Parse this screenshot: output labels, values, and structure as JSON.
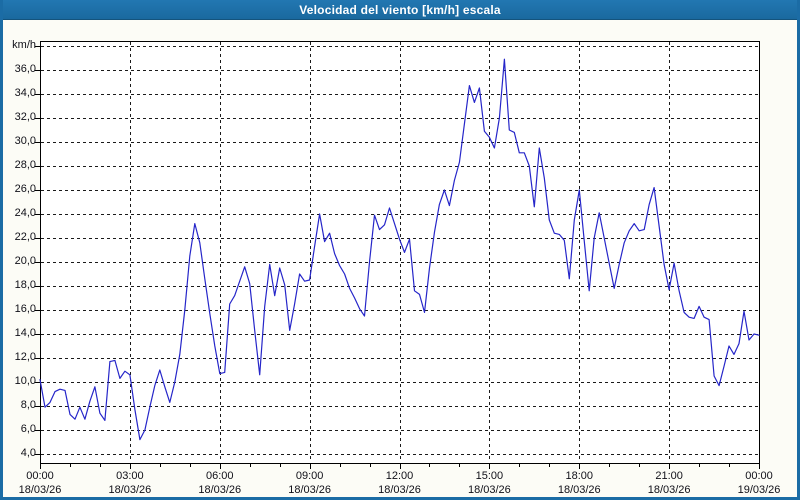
{
  "window": {
    "title": "Velocidad del viento [km/h] escala"
  },
  "colors": {
    "titlebar_bg": "#1b6ca5",
    "window_border": "#1b6ca5",
    "title_text": "#ffffff",
    "line_color": "#2626c9",
    "grid_color": "#1a1a1a",
    "plot_bg": "#ffffff",
    "outer_bg": "#fcfcf6",
    "label_text": "#101018"
  },
  "chart_data": {
    "type": "line",
    "title": "Velocidad del viento [km/h] escala",
    "series_name": "Velocidad del viento",
    "ylabel": "km/h",
    "ylim": [
      4,
      38
    ],
    "y_grid_step": 2,
    "grid": "dashed",
    "legend": "none",
    "y_axis": {
      "unit_label": "km/h",
      "tick_labels": [
        "36,0",
        "34,0",
        "32,0",
        "30,0",
        "28,0",
        "26,0",
        "24,0",
        "22,0",
        "20,0",
        "18,0",
        "16,0",
        "14,0",
        "12,0",
        "10,0",
        "8,0",
        "6,0",
        "4,0"
      ],
      "tick_values": [
        36,
        34,
        32,
        30,
        28,
        26,
        24,
        22,
        20,
        18,
        16,
        14,
        12,
        10,
        8,
        6,
        4
      ]
    },
    "x_axis": {
      "ticks": [
        {
          "time": "00:00",
          "date": "18/03/26"
        },
        {
          "time": "03:00",
          "date": "18/03/26"
        },
        {
          "time": "06:00",
          "date": "18/03/26"
        },
        {
          "time": "09:00",
          "date": "18/03/26"
        },
        {
          "time": "12:00",
          "date": "18/03/26"
        },
        {
          "time": "15:00",
          "date": "18/03/26"
        },
        {
          "time": "18:00",
          "date": "18/03/26"
        },
        {
          "time": "21:00",
          "date": "18/03/26"
        },
        {
          "time": "00:00",
          "date": "19/03/26"
        }
      ],
      "minor_tick_hours": 1,
      "major_tick_hours": 3,
      "span_hours": 24
    },
    "x_start": "00:00",
    "x_step_minutes": 10,
    "values": [
      10.2,
      7.9,
      8.3,
      9.2,
      9.4,
      9.3,
      7.3,
      6.9,
      7.9,
      6.9,
      8.4,
      9.6,
      7.4,
      6.8,
      11.7,
      11.8,
      10.3,
      10.9,
      10.6,
      7.7,
      5.2,
      6.0,
      7.9,
      9.7,
      11.0,
      9.6,
      8.3,
      10.0,
      12.3,
      16.0,
      20.5,
      23.2,
      21.6,
      18.6,
      15.7,
      13.0,
      10.7,
      10.8,
      16.5,
      17.2,
      18.4,
      19.6,
      18.2,
      14.3,
      10.6,
      16.3,
      19.8,
      17.2,
      19.5,
      18.1,
      14.3,
      16.5,
      19.0,
      18.4,
      18.5,
      21.3,
      24.0,
      21.7,
      22.4,
      20.7,
      19.7,
      19.0,
      17.8,
      17.0,
      16.1,
      15.5,
      20.0,
      23.9,
      22.7,
      23.1,
      24.5,
      23.2,
      21.9,
      20.8,
      21.9,
      17.6,
      17.3,
      15.8,
      19.5,
      22.5,
      24.8,
      26.0,
      24.7,
      26.8,
      28.3,
      31.5,
      34.7,
      33.3,
      34.5,
      30.9,
      30.4,
      29.5,
      32.0,
      36.9,
      31.0,
      30.8,
      29.1,
      29.1,
      28.0,
      24.6,
      29.5,
      27.0,
      23.5,
      22.4,
      22.3,
      21.8,
      18.6,
      23.5,
      26.0,
      21.8,
      17.6,
      22.0,
      24.1,
      22.0,
      19.9,
      17.8,
      19.8,
      21.6,
      22.6,
      23.2,
      22.6,
      22.7,
      24.8,
      26.2,
      23.0,
      19.8,
      17.7,
      19.9,
      17.6,
      15.8,
      15.4,
      15.3,
      16.3,
      15.4,
      15.2,
      10.5,
      9.7,
      11.3,
      13.0,
      12.3,
      13.2,
      15.9,
      13.5,
      14.0,
      13.9
    ]
  }
}
